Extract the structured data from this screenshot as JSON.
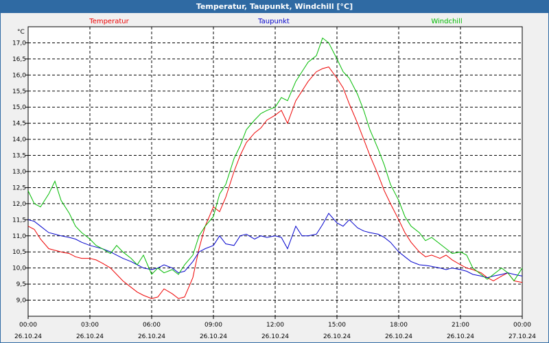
{
  "window": {
    "title": "Temperatur, Taupunkt, Windchill [°C]"
  },
  "chart_data": {
    "type": "line",
    "title": "Temperatur, Taupunkt, Windchill [°C]",
    "ylabel": "°C",
    "xlim": [
      0,
      24
    ],
    "ylim": [
      8.5,
      17.5
    ],
    "grid": true,
    "legend_position": "top",
    "y_ticks": [
      9.0,
      9.5,
      10.0,
      10.5,
      11.0,
      11.5,
      12.0,
      12.5,
      13.0,
      13.5,
      14.0,
      14.5,
      15.0,
      15.5,
      16.0,
      16.5,
      17.0
    ],
    "y_tick_labels": [
      "9,0",
      "9,5",
      "10,0",
      "10,5",
      "11,0",
      "11,5",
      "12,0",
      "12,5",
      "13,0",
      "13,5",
      "14,0",
      "14,5",
      "15,0",
      "15,5",
      "16,0",
      "16,5",
      "17,0"
    ],
    "x_ticks": [
      {
        "hour": 0,
        "time": "00:00",
        "date": "26.10.24"
      },
      {
        "hour": 3,
        "time": "03:00",
        "date": "26.10.24"
      },
      {
        "hour": 6,
        "time": "06:00",
        "date": "26.10.24"
      },
      {
        "hour": 9,
        "time": "09:00",
        "date": "26.10.24"
      },
      {
        "hour": 12,
        "time": "12:00",
        "date": "26.10.24"
      },
      {
        "hour": 15,
        "time": "15:00",
        "date": "26.10.24"
      },
      {
        "hour": 18,
        "time": "18:00",
        "date": "26.10.24"
      },
      {
        "hour": 21,
        "time": "21:00",
        "date": "26.10.24"
      },
      {
        "hour": 24,
        "time": "00:00",
        "date": "27.10.24"
      }
    ],
    "series": [
      {
        "name": "Temperatur",
        "color": "#ee0000",
        "x": [
          0,
          0.3,
          0.6,
          1.0,
          1.3,
          1.6,
          2.0,
          2.3,
          2.6,
          3.0,
          3.3,
          3.6,
          4.0,
          4.3,
          4.6,
          5.0,
          5.3,
          5.6,
          6.0,
          6.3,
          6.6,
          7.0,
          7.3,
          7.6,
          8.0,
          8.3,
          8.6,
          9.0,
          9.3,
          9.6,
          10.0,
          10.3,
          10.6,
          11.0,
          11.3,
          11.6,
          12.0,
          12.3,
          12.6,
          13.0,
          13.3,
          13.6,
          14.0,
          14.3,
          14.6,
          15.0,
          15.3,
          15.6,
          16.0,
          16.3,
          16.6,
          17.0,
          17.3,
          17.6,
          18.0,
          18.3,
          18.6,
          19.0,
          19.3,
          19.6,
          20.0,
          20.3,
          20.6,
          21.0,
          21.3,
          21.6,
          22.0,
          22.3,
          22.6,
          23.0,
          23.3,
          23.6,
          24.0
        ],
        "values": [
          11.3,
          11.2,
          10.9,
          10.6,
          10.55,
          10.5,
          10.45,
          10.35,
          10.3,
          10.3,
          10.25,
          10.15,
          10.0,
          9.8,
          9.6,
          9.4,
          9.25,
          9.15,
          9.05,
          9.1,
          9.35,
          9.2,
          9.05,
          9.1,
          9.7,
          10.6,
          11.3,
          11.9,
          11.75,
          12.2,
          13.0,
          13.5,
          13.9,
          14.2,
          14.35,
          14.6,
          14.75,
          14.9,
          14.5,
          15.2,
          15.5,
          15.8,
          16.1,
          16.2,
          16.25,
          15.9,
          15.6,
          15.1,
          14.5,
          14.0,
          13.5,
          12.9,
          12.4,
          12.0,
          11.5,
          11.1,
          10.8,
          10.5,
          10.35,
          10.4,
          10.3,
          10.4,
          10.25,
          10.1,
          10.0,
          9.95,
          9.85,
          9.7,
          9.6,
          9.75,
          9.85,
          9.6,
          9.55
        ]
      },
      {
        "name": "Taupunkt",
        "color": "#0000cc",
        "x": [
          0,
          0.3,
          0.6,
          1.0,
          1.3,
          1.6,
          2.0,
          2.3,
          2.6,
          3.0,
          3.3,
          3.6,
          4.0,
          4.3,
          4.6,
          5.0,
          5.3,
          5.6,
          6.0,
          6.3,
          6.6,
          7.0,
          7.3,
          7.6,
          8.0,
          8.3,
          8.6,
          9.0,
          9.3,
          9.6,
          10.0,
          10.3,
          10.6,
          11.0,
          11.3,
          11.6,
          12.0,
          12.3,
          12.6,
          13.0,
          13.3,
          13.6,
          14.0,
          14.3,
          14.6,
          15.0,
          15.3,
          15.6,
          16.0,
          16.3,
          16.6,
          17.0,
          17.3,
          17.6,
          18.0,
          18.3,
          18.6,
          19.0,
          19.3,
          19.6,
          20.0,
          20.3,
          20.6,
          21.0,
          21.3,
          21.6,
          22.0,
          22.3,
          22.6,
          23.0,
          23.3,
          23.6,
          24.0
        ],
        "values": [
          11.5,
          11.45,
          11.3,
          11.1,
          11.05,
          11.0,
          10.95,
          10.9,
          10.8,
          10.7,
          10.65,
          10.6,
          10.5,
          10.4,
          10.3,
          10.2,
          10.1,
          10.0,
          9.95,
          10.0,
          10.1,
          10.0,
          9.85,
          9.9,
          10.2,
          10.5,
          10.6,
          10.7,
          11.0,
          10.75,
          10.7,
          11.0,
          11.05,
          10.9,
          11.0,
          10.95,
          11.0,
          10.95,
          10.6,
          11.3,
          11.0,
          11.0,
          11.05,
          11.35,
          11.7,
          11.4,
          11.3,
          11.5,
          11.25,
          11.15,
          11.1,
          11.05,
          10.95,
          10.8,
          10.5,
          10.35,
          10.2,
          10.1,
          10.08,
          10.05,
          10.0,
          9.95,
          10.0,
          9.95,
          9.9,
          9.8,
          9.75,
          9.7,
          9.75,
          9.8,
          9.85,
          9.8,
          9.75
        ]
      },
      {
        "name": "Windchill",
        "color": "#00bb00",
        "x": [
          0,
          0.3,
          0.6,
          1.0,
          1.3,
          1.6,
          2.0,
          2.3,
          2.6,
          3.0,
          3.3,
          3.6,
          4.0,
          4.3,
          4.6,
          5.0,
          5.3,
          5.6,
          6.0,
          6.3,
          6.6,
          7.0,
          7.3,
          7.6,
          8.0,
          8.3,
          8.6,
          9.0,
          9.3,
          9.6,
          10.0,
          10.3,
          10.6,
          11.0,
          11.3,
          11.6,
          12.0,
          12.3,
          12.6,
          13.0,
          13.3,
          13.6,
          14.0,
          14.3,
          14.6,
          15.0,
          15.3,
          15.6,
          16.0,
          16.3,
          16.6,
          17.0,
          17.3,
          17.6,
          18.0,
          18.3,
          18.6,
          19.0,
          19.3,
          19.6,
          20.0,
          20.3,
          20.6,
          21.0,
          21.3,
          21.6,
          22.0,
          22.3,
          22.6,
          23.0,
          23.3,
          23.6,
          24.0
        ],
        "values": [
          12.4,
          12.0,
          11.9,
          12.3,
          12.7,
          12.1,
          11.7,
          11.3,
          11.1,
          10.9,
          10.7,
          10.6,
          10.45,
          10.7,
          10.5,
          10.3,
          10.1,
          10.4,
          9.8,
          10.0,
          9.85,
          9.95,
          9.8,
          10.1,
          10.4,
          11.0,
          11.3,
          11.6,
          12.3,
          12.6,
          13.4,
          13.8,
          14.3,
          14.6,
          14.8,
          14.9,
          15.0,
          15.3,
          15.2,
          15.8,
          16.1,
          16.4,
          16.6,
          17.15,
          17.0,
          16.5,
          16.1,
          15.9,
          15.4,
          14.9,
          14.3,
          13.7,
          13.2,
          12.6,
          12.1,
          11.6,
          11.3,
          11.1,
          10.85,
          10.95,
          10.75,
          10.6,
          10.45,
          10.5,
          10.4,
          10.0,
          9.8,
          9.65,
          9.8,
          10.0,
          9.85,
          9.6,
          10.0
        ]
      }
    ]
  }
}
